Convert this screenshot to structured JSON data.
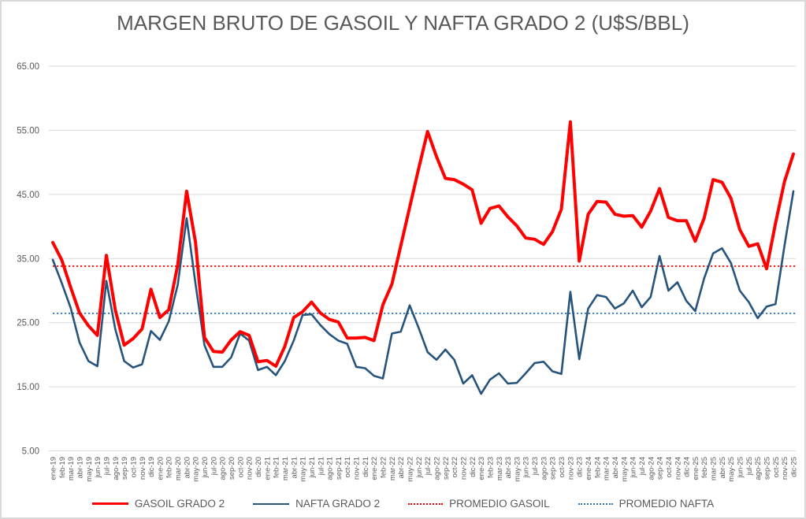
{
  "chart_data": {
    "type": "line",
    "title": "MARGEN BRUTO DE GASOIL Y NAFTA GRADO 2 (U$S/BBL)",
    "xlabel": "",
    "ylabel": "",
    "y_axis": {
      "min": 5,
      "max": 65,
      "step": 10,
      "tick_labels": [
        "5.00",
        "15.00",
        "25.00",
        "35.00",
        "45.00",
        "55.00",
        "65.00"
      ]
    },
    "grid": true,
    "legend_position": "bottom",
    "categories": [
      "ene-19",
      "feb-19",
      "mar-19",
      "abr-19",
      "may-19",
      "jun-19",
      "jul-19",
      "ago-19",
      "sep-19",
      "oct-19",
      "nov-19",
      "dic-19",
      "ene-20",
      "feb-20",
      "mar-20",
      "abr-20",
      "may-20",
      "jun-20",
      "jul-20",
      "ago-20",
      "sep-20",
      "oct-20",
      "nov-20",
      "dic-20",
      "ene-21",
      "feb-21",
      "mar-21",
      "abr-21",
      "may-21",
      "jun-21",
      "jul-21",
      "ago-21",
      "sep-21",
      "oct-21",
      "nov-21",
      "dic-21",
      "ene-22",
      "feb-22",
      "mar-22",
      "abr-22",
      "may-22",
      "jun-22",
      "jul-22",
      "ago-22",
      "sep-22",
      "oct-22",
      "nov-22",
      "dic-22",
      "ene-23",
      "feb-23",
      "mar-23",
      "abr-23",
      "may-23",
      "jun-23",
      "jul-23",
      "ago-23",
      "sep-23",
      "oct-23",
      "nov-23",
      "dic-23",
      "ene-24",
      "feb-24",
      "mar-24",
      "abr-24",
      "may-24",
      "jun-24",
      "jul-24",
      "ago-24",
      "sep-24",
      "oct-24",
      "nov-24",
      "dic-24",
      "ene-25",
      "feb-25",
      "mar-25",
      "abr-25",
      "may-25",
      "jun-25",
      "jul-25",
      "ago-25",
      "sep-25",
      "oct-25",
      "nov-25",
      "dic-25"
    ],
    "series": [
      {
        "name": "GASOIL GRADO 2",
        "color": "#ff0000",
        "style": "solid",
        "stroke_width": 4,
        "values": [
          37.5,
          34.8,
          30.5,
          26.5,
          24.5,
          23.0,
          35.5,
          27.0,
          21.5,
          22.5,
          24.0,
          30.2,
          25.8,
          27.0,
          34.0,
          45.5,
          37.5,
          22.7,
          20.5,
          20.4,
          22.3,
          23.6,
          23.0,
          18.9,
          19.1,
          18.2,
          21.3,
          25.8,
          26.7,
          28.2,
          26.5,
          25.5,
          25.1,
          22.6,
          22.6,
          22.7,
          22.2,
          27.8,
          31.0,
          37.0,
          43.0,
          49.0,
          54.8,
          50.9,
          47.5,
          47.3,
          46.6,
          45.7,
          40.5,
          42.8,
          43.2,
          41.5,
          40.1,
          38.2,
          38.0,
          37.2,
          39.2,
          42.7,
          56.3,
          34.6,
          41.9,
          43.9,
          43.8,
          41.9,
          41.6,
          41.7,
          39.9,
          42.4,
          45.9,
          41.4,
          40.9,
          40.9,
          37.7,
          41.3,
          47.3,
          46.9,
          44.4,
          39.5,
          36.9,
          37.3,
          33.4,
          40.5,
          47.0,
          51.3
        ]
      },
      {
        "name": "NAFTA GRADO 2",
        "color": "#26547c",
        "style": "solid",
        "stroke_width": 2.6,
        "values": [
          34.8,
          31.2,
          27.3,
          21.9,
          19.0,
          18.2,
          31.5,
          24.0,
          19.0,
          18.0,
          18.5,
          23.7,
          22.3,
          25.2,
          30.9,
          41.3,
          31.0,
          21.5,
          18.1,
          18.1,
          19.6,
          23.3,
          22.2,
          17.6,
          18.1,
          16.8,
          19.0,
          22.2,
          26.2,
          26.3,
          24.6,
          23.2,
          22.2,
          21.7,
          18.1,
          17.9,
          16.7,
          16.3,
          23.3,
          23.6,
          27.7,
          24.2,
          20.4,
          19.2,
          20.8,
          19.2,
          15.5,
          16.8,
          13.9,
          16.1,
          17.1,
          15.5,
          15.6,
          17.1,
          18.7,
          18.9,
          17.4,
          17.0,
          29.8,
          19.3,
          27.2,
          29.3,
          29.0,
          27.2,
          28.0,
          30.0,
          27.4,
          29.0,
          35.4,
          30.0,
          31.3,
          28.4,
          26.8,
          31.9,
          35.8,
          36.6,
          34.3,
          30.0,
          28.2,
          25.7,
          27.5,
          27.9,
          37.0,
          45.5
        ]
      },
      {
        "name": "PROMEDIO GASOIL",
        "color": "#ff0000",
        "style": "dotted",
        "stroke_width": 1.8,
        "avg_value": 33.8
      },
      {
        "name": "PROMEDIO NAFTA",
        "color": "#2e75b6",
        "style": "dotted",
        "stroke_width": 1.8,
        "avg_value": 26.45
      }
    ]
  }
}
